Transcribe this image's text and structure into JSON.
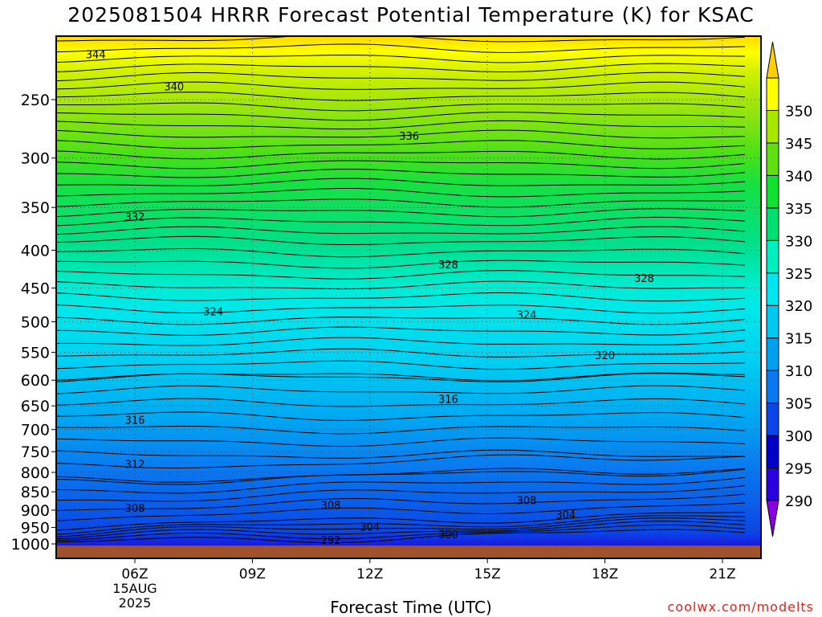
{
  "title": "2025081504 HRRR Forecast Potential Temperature (K) for KSAC",
  "xlabel": "Forecast Time (UTC)",
  "credit": "coolwx.com/modelts",
  "chart_data": {
    "type": "heatmap",
    "title": "2025081504 HRRR Forecast Potential Temperature (K) for KSAC",
    "xlabel": "Forecast Time (UTC)",
    "ylabel": "",
    "x_ticks": [
      {
        "hour": 6,
        "label": "06Z",
        "sublabel": [
          "15AUG",
          "2025"
        ]
      },
      {
        "hour": 9,
        "label": "09Z"
      },
      {
        "hour": 12,
        "label": "12Z"
      },
      {
        "hour": 15,
        "label": "15Z"
      },
      {
        "hour": 18,
        "label": "18Z"
      },
      {
        "hour": 21,
        "label": "21Z"
      }
    ],
    "xlim": [
      4,
      22
    ],
    "y_ticks": [
      250,
      300,
      350,
      400,
      450,
      500,
      550,
      600,
      650,
      700,
      750,
      800,
      850,
      900,
      950,
      1000
    ],
    "ylim_hPa": [
      1000,
      200
    ],
    "y_scale": "log",
    "colorbar": {
      "levels": [
        290,
        295,
        300,
        305,
        310,
        315,
        320,
        325,
        330,
        335,
        340,
        345,
        350
      ],
      "colors": [
        "#8a00e0",
        "#2a00e0",
        "#0000c8",
        "#0a46e6",
        "#0a78f0",
        "#00a0f0",
        "#00c8f0",
        "#00e6f0",
        "#00f0c0",
        "#00e070",
        "#10e030",
        "#60e010",
        "#a8e800",
        "#ffff00",
        "#ffd000"
      ],
      "position": "right"
    },
    "ground_color": "#a0522d",
    "contour_labels": [
      {
        "value": 344,
        "x": 5.0,
        "p": 217
      },
      {
        "value": 340,
        "x": 7.0,
        "p": 240
      },
      {
        "value": 336,
        "x": 13.0,
        "p": 280
      },
      {
        "value": 332,
        "x": 6.0,
        "p": 360
      },
      {
        "value": 328,
        "x": 14.0,
        "p": 418
      },
      {
        "value": 328,
        "x": 19.0,
        "p": 436
      },
      {
        "value": 324,
        "x": 8.0,
        "p": 484
      },
      {
        "value": 324,
        "x": 16.0,
        "p": 489
      },
      {
        "value": 320,
        "x": 18.0,
        "p": 555
      },
      {
        "value": 316,
        "x": 6.0,
        "p": 679
      },
      {
        "value": 316,
        "x": 14.0,
        "p": 636
      },
      {
        "value": 312,
        "x": 6.0,
        "p": 779
      },
      {
        "value": 308,
        "x": 6.0,
        "p": 893
      },
      {
        "value": 308,
        "x": 11.0,
        "p": 885
      },
      {
        "value": 308,
        "x": 16.0,
        "p": 872
      },
      {
        "value": 304,
        "x": 12.0,
        "p": 948
      },
      {
        "value": 304,
        "x": 17.0,
        "p": 913
      },
      {
        "value": 300,
        "x": 14.0,
        "p": 970
      },
      {
        "value": 292,
        "x": 11.0,
        "p": 988
      }
    ],
    "grid": true
  }
}
